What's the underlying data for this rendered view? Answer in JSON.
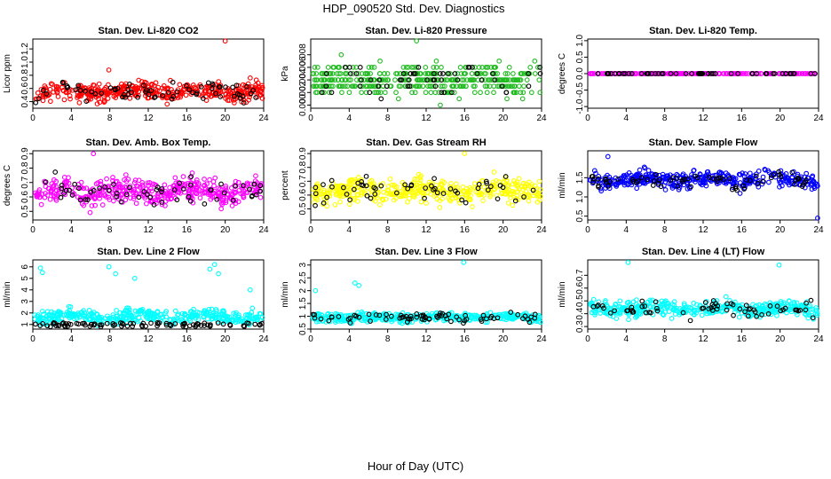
{
  "figure": {
    "title": "HDP_090520  Std. Dev. Diagnostics",
    "xlabel": "Hour of Day (UTC)"
  },
  "colors": {
    "black": "#000000",
    "red": "#ff0000",
    "green": "#22bb22",
    "magenta": "#ff00ff",
    "yellow": "#ffff00",
    "blue": "#0000ff",
    "cyan": "#00ffff"
  },
  "chart_data": [
    {
      "type": "scatter",
      "title": "Stan. Dev. Li-820 CO2",
      "ylabel": "Licor ppm",
      "xlim": [
        0,
        24
      ],
      "ylim": [
        0.3,
        1.35
      ],
      "xticks": [
        0,
        4,
        8,
        12,
        16,
        20,
        24
      ],
      "yticks": [
        0.4,
        0.6,
        0.8,
        1.0,
        1.2
      ],
      "yticklabels": [
        "0.4",
        "0.6",
        "0.8",
        "1.0",
        "1.2"
      ],
      "color": "red",
      "pattern": {
        "base": 0.55,
        "spread": 0.13,
        "min": 0.32,
        "max": 0.8,
        "n": 420,
        "nblack": 70,
        "seed": 11
      },
      "outliers": [
        [
          7.9,
          0.88
        ],
        [
          20.0,
          1.32
        ],
        [
          22.6,
          0.76
        ]
      ]
    },
    {
      "type": "scatter",
      "title": "Stan. Dev. Li-820 Pressure",
      "ylabel": "kPa",
      "xlim": [
        0,
        24
      ],
      "ylim": [
        -0.0005,
        0.0105
      ],
      "xticks": [
        0,
        4,
        8,
        12,
        16,
        20,
        24
      ],
      "yticks": [
        0.0,
        0.002,
        0.004,
        0.006,
        0.008
      ],
      "yticklabels": [
        "0.000",
        "0.002",
        "0.004",
        "0.006",
        "0.008"
      ],
      "color": "green",
      "pattern": {
        "base": 0.004,
        "spread": 0.0022,
        "min": 0.0,
        "max": 0.0095,
        "n": 420,
        "nblack": 55,
        "seed": 23,
        "quantum": 0.001
      },
      "outliers": [
        [
          11.0,
          0.0102
        ]
      ]
    },
    {
      "type": "scatter",
      "title": "Stan. Dev. Li-820 Temp.",
      "ylabel": "degrees C",
      "xlim": [
        0,
        24
      ],
      "ylim": [
        -1.05,
        1.05
      ],
      "xticks": [
        0,
        4,
        8,
        12,
        16,
        20,
        24
      ],
      "yticks": [
        -1.0,
        -0.5,
        0.0,
        0.5,
        1.0
      ],
      "yticklabels": [
        "-1.0",
        "-0.5",
        "0.0",
        "0.5",
        "1.0"
      ],
      "color": "magenta",
      "pattern": {
        "base": 0.0,
        "spread": 0.0,
        "min": 0.0,
        "max": 0.0,
        "n": 240,
        "nblack": 60,
        "seed": 5,
        "flat": true
      },
      "outliers": []
    },
    {
      "type": "scatter",
      "title": "Stan. Dev. Amb. Box Temp.",
      "ylabel": "degrees C",
      "xlim": [
        0,
        24
      ],
      "ylim": [
        0.44,
        0.92
      ],
      "xticks": [
        0,
        4,
        8,
        12,
        16,
        20,
        24
      ],
      "yticks": [
        0.5,
        0.6,
        0.7,
        0.8,
        0.9
      ],
      "yticklabels": [
        "0.5",
        "0.6",
        "0.7",
        "0.8",
        "0.9"
      ],
      "color": "magenta",
      "pattern": {
        "base": 0.64,
        "spread": 0.08,
        "min": 0.45,
        "max": 0.85,
        "n": 420,
        "nblack": 60,
        "seed": 37
      },
      "outliers": [
        [
          6.3,
          0.9
        ]
      ]
    },
    {
      "type": "scatter",
      "title": "Stan. Dev. Gas Stream RH",
      "ylabel": "percent",
      "xlim": [
        0,
        24
      ],
      "ylim": [
        0.42,
        0.92
      ],
      "xticks": [
        0,
        4,
        8,
        12,
        16,
        20,
        24
      ],
      "yticks": [
        0.5,
        0.6,
        0.7,
        0.8,
        0.9
      ],
      "yticklabels": [
        "0.5",
        "0.6",
        "0.7",
        "0.8",
        "0.9"
      ],
      "color": "yellow",
      "pattern": {
        "base": 0.63,
        "spread": 0.08,
        "min": 0.43,
        "max": 0.86,
        "n": 420,
        "nblack": 55,
        "seed": 41
      },
      "outliers": [
        [
          16.0,
          0.9
        ]
      ]
    },
    {
      "type": "scatter",
      "title": "Stan. Dev. Sample Flow",
      "ylabel": "ml/min",
      "xlim": [
        0,
        24
      ],
      "ylim": [
        0.4,
        2.2
      ],
      "xticks": [
        0,
        4,
        8,
        12,
        16,
        20,
        24
      ],
      "yticks": [
        0.5,
        1.0,
        1.5
      ],
      "yticklabels": [
        "0.5",
        "1.0",
        "1.5"
      ],
      "color": "blue",
      "pattern": {
        "base": 1.45,
        "spread": 0.2,
        "min": 0.6,
        "max": 2.0,
        "n": 420,
        "nblack": 70,
        "seed": 53
      },
      "outliers": [
        [
          2.1,
          2.05
        ],
        [
          23.9,
          0.45
        ]
      ]
    },
    {
      "type": "scatter",
      "title": "Stan. Dev. Line 2 Flow",
      "ylabel": "ml/min",
      "xlim": [
        0,
        24
      ],
      "ylim": [
        0.6,
        6.6
      ],
      "xticks": [
        0,
        4,
        8,
        12,
        16,
        20,
        24
      ],
      "yticks": [
        1,
        2,
        3,
        4,
        5,
        6
      ],
      "yticklabels": [
        "1",
        "2",
        "3",
        "4",
        "5",
        "6"
      ],
      "color": "cyan",
      "pattern": {
        "base": 1.7,
        "spread": 0.55,
        "min": 0.9,
        "max": 3.6,
        "n": 380,
        "nblack": 90,
        "seed": 67,
        "blackband": [
          0.8,
          1.15
        ]
      },
      "outliers": [
        [
          0.8,
          5.9
        ],
        [
          1.0,
          5.5
        ],
        [
          7.9,
          6.0
        ],
        [
          8.6,
          5.4
        ],
        [
          10.6,
          5.0
        ],
        [
          18.4,
          5.8
        ],
        [
          18.9,
          6.2
        ],
        [
          19.3,
          5.4
        ],
        [
          22.6,
          4.0
        ]
      ]
    },
    {
      "type": "scatter",
      "title": "Stan. Dev. Line 3 Flow",
      "ylabel": "ml/min",
      "xlim": [
        0,
        24
      ],
      "ylim": [
        0.5,
        3.2
      ],
      "xticks": [
        0,
        4,
        8,
        12,
        16,
        20,
        24
      ],
      "yticks": [
        0.5,
        1.0,
        1.5,
        2.0,
        2.5,
        3.0
      ],
      "yticklabels": [
        "0.5",
        "1",
        "1.5",
        "2",
        "2.5",
        "3"
      ],
      "color": "cyan",
      "pattern": {
        "base": 0.95,
        "spread": 0.16,
        "min": 0.55,
        "max": 1.45,
        "n": 420,
        "nblack": 75,
        "seed": 71
      },
      "outliers": [
        [
          0.5,
          2.0
        ],
        [
          4.6,
          2.3
        ],
        [
          5.0,
          2.2
        ],
        [
          15.9,
          3.1
        ]
      ]
    },
    {
      "type": "scatter",
      "title": "Stan. Dev. Line 4 (LT) Flow",
      "ylabel": "ml/min",
      "xlim": [
        0,
        24
      ],
      "ylim": [
        0.28,
        0.82
      ],
      "xticks": [
        0,
        4,
        8,
        12,
        16,
        20,
        24
      ],
      "yticks": [
        0.3,
        0.4,
        0.5,
        0.6,
        0.7
      ],
      "yticklabels": [
        "0.3",
        "0.4",
        "0.5",
        "0.6",
        "0.7"
      ],
      "color": "cyan",
      "pattern": {
        "base": 0.44,
        "spread": 0.055,
        "min": 0.3,
        "max": 0.62,
        "n": 420,
        "nblack": 65,
        "seed": 83
      },
      "outliers": [
        [
          4.2,
          0.8
        ],
        [
          19.9,
          0.78
        ]
      ]
    }
  ]
}
